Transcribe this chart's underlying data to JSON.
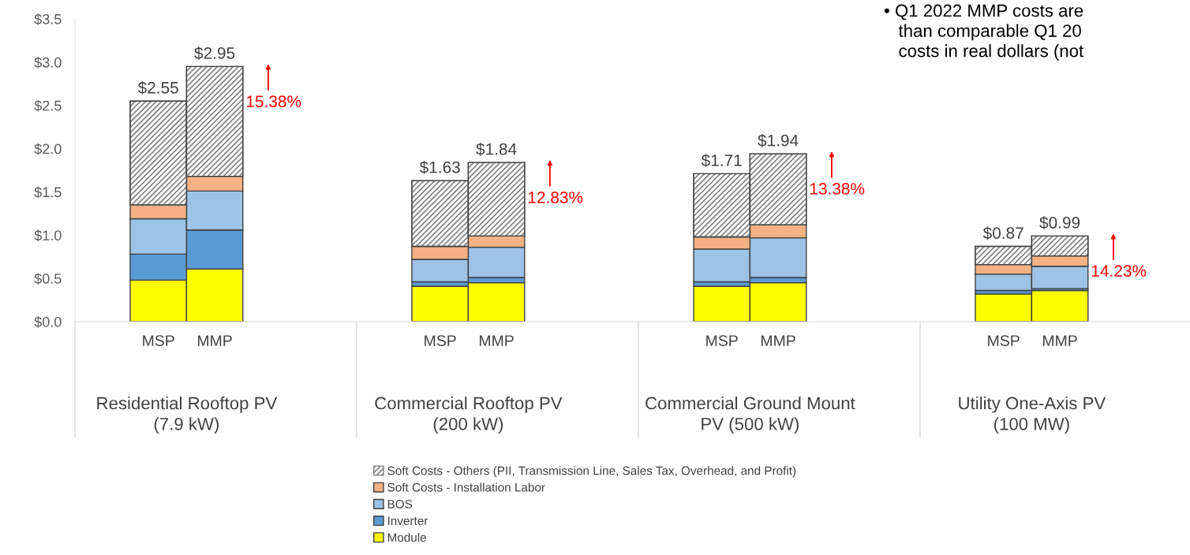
{
  "chart_data": {
    "type": "bar",
    "stacked": true,
    "categories": [
      "MSP",
      "MMP",
      null,
      null,
      null,
      "MSP",
      "MMP",
      null,
      null,
      null,
      "MSP",
      "MMP",
      null,
      null,
      null,
      "MSP",
      "MMP"
    ],
    "series": [
      {
        "name": "Module",
        "color": "#ffff00",
        "values": [
          0.48,
          0.61,
          null,
          null,
          null,
          0.41,
          0.45,
          null,
          null,
          null,
          0.41,
          0.45,
          null,
          null,
          null,
          0.32,
          0.36
        ]
      },
      {
        "name": "Inverter",
        "color": "#5b9bd5",
        "values": [
          0.3,
          0.45,
          null,
          null,
          null,
          0.05,
          0.06,
          null,
          null,
          null,
          0.05,
          0.06,
          null,
          null,
          null,
          0.04,
          0.02
        ]
      },
      {
        "name": "BOS",
        "color": "#9dc3e6",
        "values": [
          0.41,
          0.45,
          null,
          null,
          null,
          0.26,
          0.35,
          null,
          null,
          null,
          0.38,
          0.46,
          null,
          null,
          null,
          0.19,
          0.26
        ]
      },
      {
        "name": "Soft Costs - Installation Labor",
        "color": "#f4b183",
        "values": [
          0.16,
          0.17,
          null,
          null,
          null,
          0.15,
          0.13,
          null,
          null,
          null,
          0.14,
          0.15,
          null,
          null,
          null,
          0.11,
          0.12
        ]
      },
      {
        "name": "Soft Costs - Others (PII, Transmission Line, Sales Tax, Overhead, and Profit)",
        "color": "#7f7f7f",
        "values": [
          1.2,
          1.27,
          null,
          null,
          null,
          0.76,
          0.85,
          null,
          null,
          null,
          0.73,
          0.82,
          null,
          null,
          null,
          0.21,
          0.23
        ]
      }
    ],
    "totals": [
      "$2.55",
      "$2.95",
      null,
      null,
      null,
      "$1.63",
      "$1.84",
      null,
      null,
      null,
      "$1.71",
      "$1.94",
      null,
      null,
      null,
      "$0.87",
      "$0.99"
    ],
    "ylim": [
      0,
      3.5
    ],
    "yticks": [
      {
        "value": 0,
        "label": "$0.0"
      },
      {
        "value": 0.5,
        "label": "$0.5"
      },
      {
        "value": 1.0,
        "label": "$1.0"
      },
      {
        "value": 1.5,
        "label": "$1.5"
      },
      {
        "value": 2.0,
        "label": "$2.0"
      },
      {
        "value": 2.5,
        "label": "$2.5"
      },
      {
        "value": 3.0,
        "label": "$3.0"
      },
      {
        "value": 3.5,
        "label": "$3.5"
      }
    ],
    "annotations": [
      "Residential Rooftop PV\n(7.9 kW)",
      "Commercial Rooftop PV\n(200 kW)",
      "Commercial Ground Mount\nPV (500 kW)",
      "Utility One-Axis PV\n(100 MW)",
      "15.38%",
      "12.83%",
      "13.38%",
      "14.23%",
      "• Q1 2022 MMP costs are\n   than comparable Q1 20\n   costs in real dollars (not"
    ],
    "grid": false,
    "legend": "bottom"
  }
}
